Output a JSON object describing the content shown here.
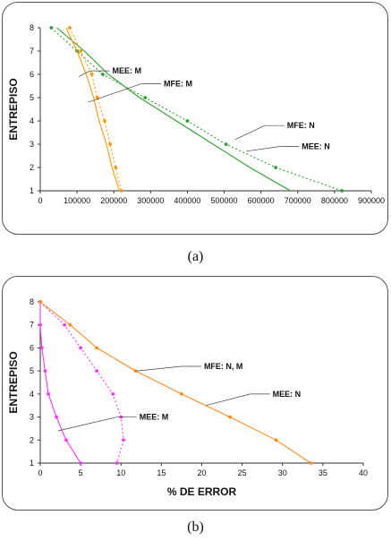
{
  "chart_data": [
    {
      "id": "a",
      "type": "line",
      "caption": "(a)",
      "ylabel": "ENTREPISO",
      "xlabel": "",
      "xlim": [
        0,
        900000
      ],
      "ylim": [
        1,
        8
      ],
      "xticks": [
        0,
        100000,
        200000,
        300000,
        400000,
        500000,
        600000,
        700000,
        800000,
        900000
      ],
      "yticks": [
        1,
        2,
        3,
        4,
        5,
        6,
        7,
        8
      ],
      "grid": false,
      "series": [
        {
          "color": "#2ca02c",
          "style": "dotted",
          "markers": true,
          "points": [
            [
              30000,
              8
            ],
            [
              100000,
              7
            ],
            [
              170000,
              6
            ],
            [
              285000,
              5
            ],
            [
              400000,
              4
            ],
            [
              505000,
              3
            ],
            [
              640000,
              2
            ],
            [
              820000,
              1
            ]
          ]
        },
        {
          "color": "#2ca02c",
          "style": "solid",
          "markers": false,
          "points": [
            [
              45000,
              8
            ],
            [
              120000,
              7
            ],
            [
              185000,
              6
            ],
            [
              270000,
              5
            ],
            [
              370000,
              4
            ],
            [
              470000,
              3
            ],
            [
              570000,
              2
            ],
            [
              680000,
              1
            ]
          ]
        },
        {
          "color": "#ff9900",
          "style": "dotted",
          "markers": true,
          "points": [
            [
              80000,
              8
            ],
            [
              110000,
              7
            ],
            [
              140000,
              6
            ],
            [
              155000,
              5
            ],
            [
              175000,
              4
            ],
            [
              190000,
              3
            ],
            [
              205000,
              2
            ],
            [
              220000,
              1
            ]
          ]
        },
        {
          "color": "#ff9900",
          "style": "solid",
          "markers": false,
          "points": [
            [
              70000,
              8
            ],
            [
              100000,
              7
            ],
            [
              125000,
              6
            ],
            [
              145000,
              5
            ],
            [
              160000,
              4
            ],
            [
              180000,
              3
            ],
            [
              195000,
              2
            ],
            [
              215000,
              1
            ]
          ]
        }
      ],
      "annotations": [
        {
          "text": "MEE: M",
          "ax": 105000,
          "ay": 5.9,
          "lx": 135000,
          "ly": 6.15
        },
        {
          "text": "MFE: M",
          "ax": 130000,
          "ay": 4.8,
          "lx": 275000,
          "ly": 5.6
        },
        {
          "text": "MFE: N",
          "ax": 530000,
          "ay": 3.2,
          "lx": 610000,
          "ly": 3.8
        },
        {
          "text": "MEE: N",
          "ax": 560000,
          "ay": 2.7,
          "lx": 650000,
          "ly": 2.9
        }
      ]
    },
    {
      "id": "b",
      "type": "line",
      "caption": "(b)",
      "ylabel": "ENTREPISO",
      "xlabel": "% DE ERROR",
      "xlim": [
        0,
        40
      ],
      "ylim": [
        1,
        8
      ],
      "xticks": [
        0,
        5,
        10,
        15,
        20,
        25,
        30,
        35,
        40
      ],
      "yticks": [
        1,
        2,
        3,
        4,
        5,
        6,
        7,
        8
      ],
      "grid": false,
      "series": [
        {
          "color": "#ff33ff",
          "style": "solid",
          "markers": true,
          "points": [
            [
              0,
              8
            ],
            [
              0,
              7
            ],
            [
              0.2,
              6
            ],
            [
              0.6,
              5
            ],
            [
              1.0,
              4
            ],
            [
              2.0,
              3
            ],
            [
              3.2,
              2
            ],
            [
              5.0,
              1
            ]
          ]
        },
        {
          "color": "#ff33ff",
          "style": "dotted",
          "markers": true,
          "points": [
            [
              0,
              8
            ],
            [
              3.0,
              7
            ],
            [
              5.0,
              6
            ],
            [
              7.0,
              5
            ],
            [
              9.0,
              4
            ],
            [
              10.0,
              3
            ],
            [
              10.3,
              2
            ],
            [
              9.5,
              1
            ]
          ]
        },
        {
          "color": "#ff8c1a",
          "style": "solid",
          "markers": true,
          "points": [
            [
              0,
              8
            ],
            [
              3.7,
              7
            ],
            [
              7.0,
              6
            ],
            [
              11.8,
              5
            ],
            [
              17.5,
              4
            ],
            [
              23.5,
              3
            ],
            [
              29.2,
              2
            ],
            [
              33.5,
              1
            ]
          ]
        }
      ],
      "annotations": [
        {
          "text": "MFE: N, M",
          "ax": 12,
          "ay": 5.0,
          "lx": 17.5,
          "ly": 5.2
        },
        {
          "text": "MEE: N",
          "ax": 20.5,
          "ay": 3.5,
          "lx": 26,
          "ly": 4.0
        },
        {
          "text": "MEE: M",
          "ax": 2.2,
          "ay": 2.4,
          "lx": 9.5,
          "ly": 3.0
        }
      ]
    }
  ]
}
